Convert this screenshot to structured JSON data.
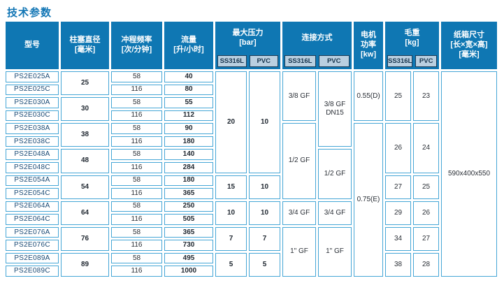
{
  "title": "技术参数",
  "colors": {
    "header_blue": "#0f77b3",
    "subheader_bg": "#b9cfe0",
    "subheader_text": "#17344d",
    "cell_border": "#45a6d6",
    "model_text": "#1a4a75",
    "title_text": "#1276b5"
  },
  "table": {
    "header": {
      "model": "型号",
      "diameter": "柱塞直径\n[毫米]",
      "frequency": "冲程频率\n[次/分钟]",
      "flow": "流量\n[升/小时]",
      "pressure": {
        "label": "最大压力\n[bar]",
        "sub": [
          "SS316L",
          "PVC"
        ]
      },
      "connection": {
        "label": "连接方式",
        "sub": [
          "SS316L",
          "PVC"
        ]
      },
      "power": "电机\n功率\n[kw]",
      "weight": {
        "label": "毛重\n[kg]",
        "sub": [
          "SS316L",
          "PVC"
        ]
      },
      "carton": "纸箱尺寸\n[长×宽×高]\n[毫米]"
    },
    "rows": [
      {
        "model": "PS2E025A",
        "frequency": "58",
        "flow": "40"
      },
      {
        "model": "PS2E025C",
        "frequency": "116",
        "flow": "80"
      },
      {
        "model": "PS2E030A",
        "frequency": "58",
        "flow": "55"
      },
      {
        "model": "PS2E030C",
        "frequency": "116",
        "flow": "112"
      },
      {
        "model": "PS2E038A",
        "frequency": "58",
        "flow": "90"
      },
      {
        "model": "PS2E038C",
        "frequency": "116",
        "flow": "180"
      },
      {
        "model": "PS2E048A",
        "frequency": "58",
        "flow": "140"
      },
      {
        "model": "PS2E048C",
        "frequency": "116",
        "flow": "284"
      },
      {
        "model": "PS2E054A",
        "frequency": "58",
        "flow": "180"
      },
      {
        "model": "PS2E054C",
        "frequency": "116",
        "flow": "365"
      },
      {
        "model": "PS2E064A",
        "frequency": "58",
        "flow": "250"
      },
      {
        "model": "PS2E064C",
        "frequency": "116",
        "flow": "505"
      },
      {
        "model": "PS2E076A",
        "frequency": "58",
        "flow": "365"
      },
      {
        "model": "PS2E076C",
        "frequency": "116",
        "flow": "730"
      },
      {
        "model": "PS2E089A",
        "frequency": "58",
        "flow": "495"
      },
      {
        "model": "PS2E089C",
        "frequency": "116",
        "flow": "1000"
      }
    ],
    "diameter_spans": [
      {
        "v": "25",
        "span": 2
      },
      {
        "v": "30",
        "span": 2
      },
      {
        "v": "38",
        "span": 2
      },
      {
        "v": "48",
        "span": 2
      },
      {
        "v": "54",
        "span": 2
      },
      {
        "v": "64",
        "span": 2
      },
      {
        "v": "76",
        "span": 2
      },
      {
        "v": "89",
        "span": 2
      }
    ],
    "pressure_ss316l_spans": [
      {
        "v": "20",
        "span": 8
      },
      {
        "v": "15",
        "span": 2
      },
      {
        "v": "10",
        "span": 2
      },
      {
        "v": "7",
        "span": 2
      },
      {
        "v": "5",
        "span": 2
      }
    ],
    "pressure_pvc_spans": [
      {
        "v": "10",
        "span": 8
      },
      {
        "v": "10",
        "span": 2
      },
      {
        "v": "10",
        "span": 2
      },
      {
        "v": "7",
        "span": 2
      },
      {
        "v": "5",
        "span": 2
      }
    ],
    "connection_ss316l_spans": [
      {
        "v": "3/8 GF",
        "span": 4
      },
      {
        "v": "1/2 GF",
        "span": 6
      },
      {
        "v": "3/4 GF",
        "span": 2
      },
      {
        "v": "1\" GF",
        "span": 4
      }
    ],
    "connection_pvc_spans": [
      {
        "v": "3/8 GF\nDN15",
        "span": 6
      },
      {
        "v": "1/2 GF",
        "span": 4
      },
      {
        "v": "3/4 GF",
        "span": 2
      },
      {
        "v": "1\" GF",
        "span": 4
      }
    ],
    "power_spans": [
      {
        "v": "0.55(D)",
        "span": 4
      },
      {
        "v": "0.75(E)",
        "span": 12
      }
    ],
    "weight_ss316l_spans": [
      {
        "v": "25",
        "span": 4
      },
      {
        "v": "26",
        "span": 4
      },
      {
        "v": "27",
        "span": 2
      },
      {
        "v": "29",
        "span": 2
      },
      {
        "v": "34",
        "span": 2
      },
      {
        "v": "38",
        "span": 2
      }
    ],
    "weight_pvc_spans": [
      {
        "v": "23",
        "span": 4
      },
      {
        "v": "24",
        "span": 4
      },
      {
        "v": "25",
        "span": 2
      },
      {
        "v": "26",
        "span": 2
      },
      {
        "v": "27",
        "span": 2
      },
      {
        "v": "28",
        "span": 2
      }
    ],
    "carton_spans": [
      {
        "v": "590x400x550",
        "span": 16
      }
    ]
  }
}
